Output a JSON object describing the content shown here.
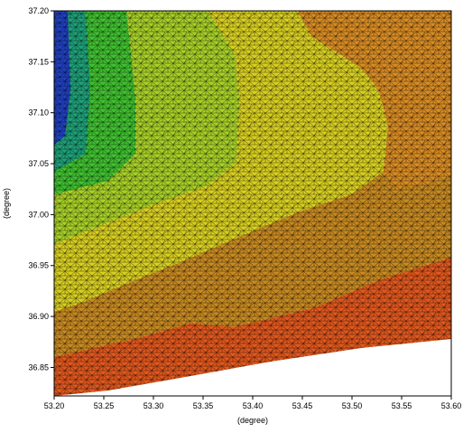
{
  "chart_data": {
    "type": "contour",
    "xlabel": "(degree)",
    "ylabel": "(degree)",
    "xlim": [
      53.2,
      53.6
    ],
    "xticks": [
      {
        "value": 53.2,
        "label": "53.20"
      },
      {
        "value": 53.25,
        "label": "53.25"
      },
      {
        "value": 53.3,
        "label": "53.30"
      },
      {
        "value": 53.35,
        "label": "53.35"
      },
      {
        "value": 53.4,
        "label": "53.40"
      },
      {
        "value": 53.45,
        "label": "53.45"
      },
      {
        "value": 53.5,
        "label": "53.50"
      },
      {
        "value": 53.55,
        "label": "53.55"
      },
      {
        "value": 53.6,
        "label": "53.60"
      }
    ],
    "ylim": [
      36.822,
      37.2
    ],
    "yticks": [
      {
        "value": 36.85,
        "label": "36.85"
      },
      {
        "value": 36.9,
        "label": "36.90"
      },
      {
        "value": 36.95,
        "label": "36.95"
      },
      {
        "value": 37.0,
        "label": "37.00"
      },
      {
        "value": 37.05,
        "label": "37.05"
      },
      {
        "value": 37.1,
        "label": "37.10"
      },
      {
        "value": 37.15,
        "label": "37.15"
      },
      {
        "value": 37.2,
        "label": "37.20"
      }
    ]
  }
}
